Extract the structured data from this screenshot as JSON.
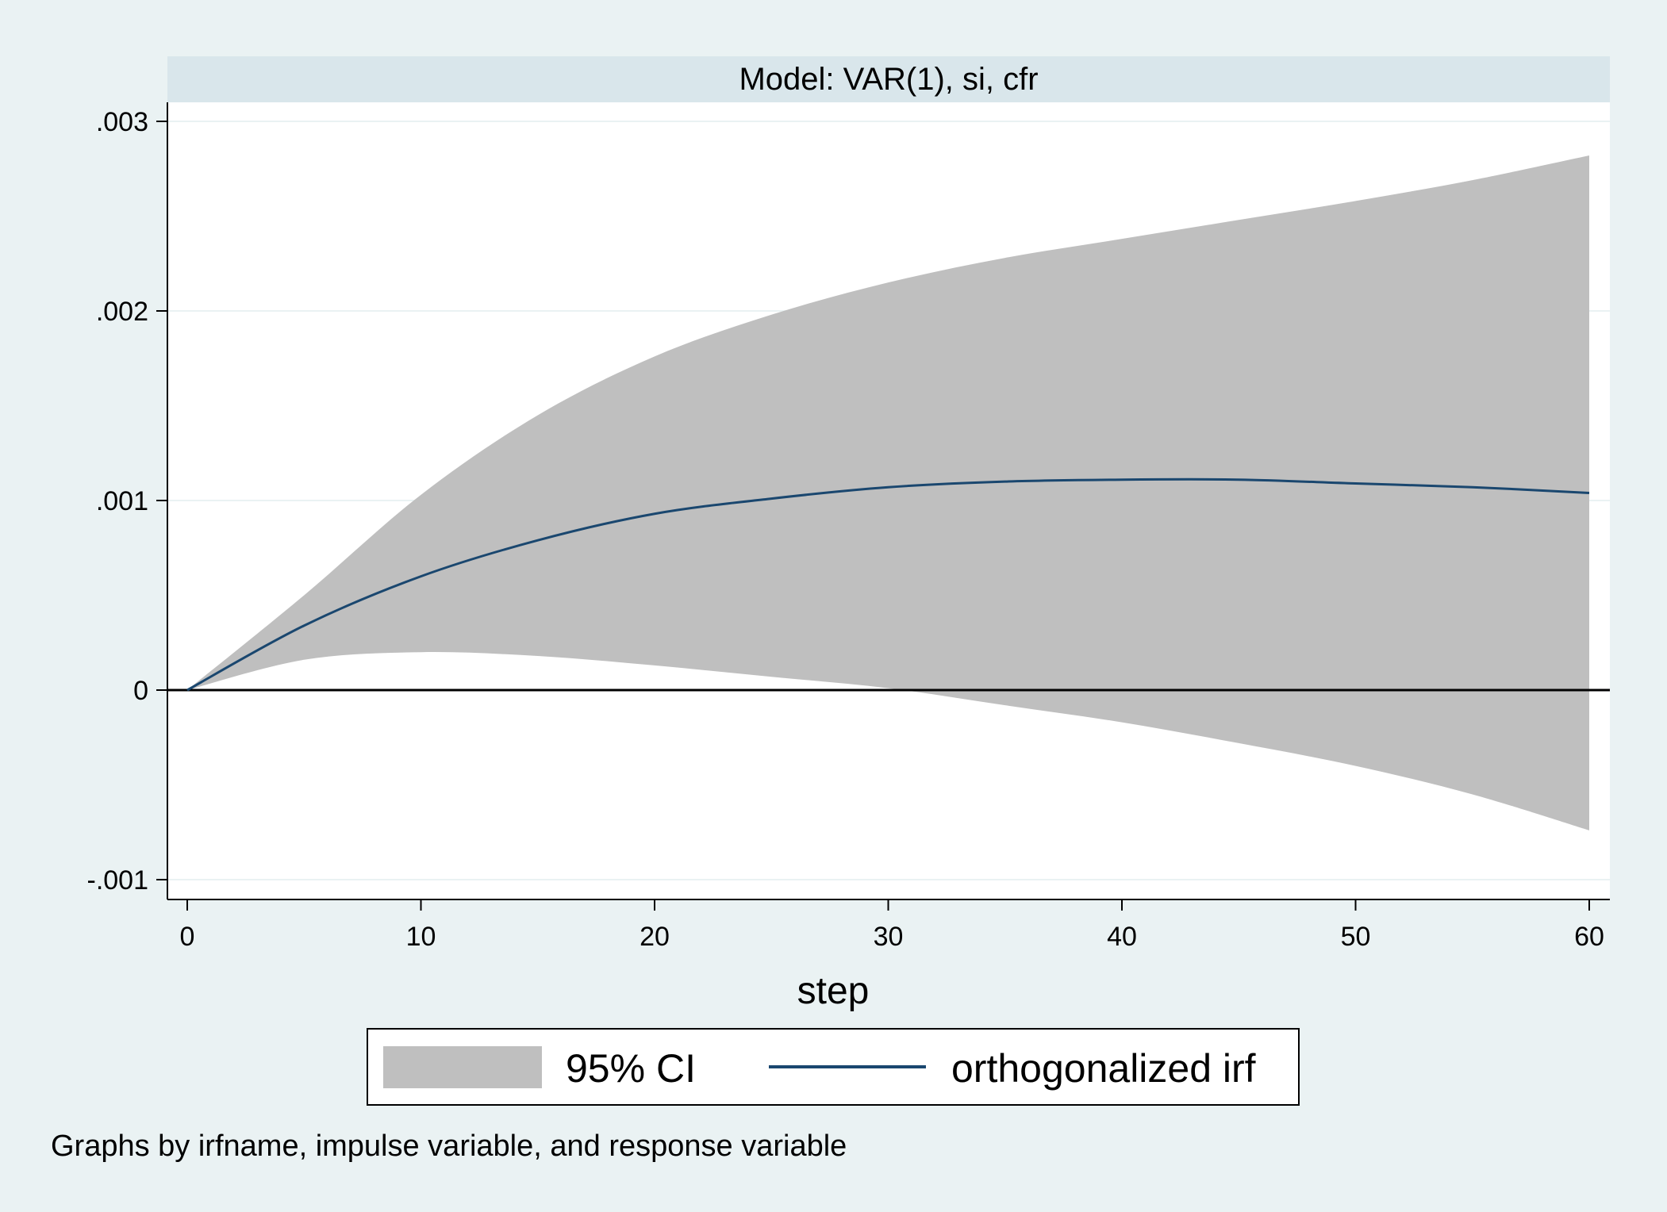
{
  "panel": {
    "title": "Model: VAR(1), si, cfr"
  },
  "note": "Graphs by irfname, impulse variable, and response variable",
  "legend": {
    "items": [
      {
        "label": "95% CI",
        "kind": "area"
      },
      {
        "label": "orthogonalized irf",
        "kind": "line"
      }
    ]
  },
  "colors": {
    "background": "#eaf2f3",
    "plot_bg": "#ffffff",
    "title_band": "#d9e6eb",
    "ci_fill": "#bfbfbf",
    "irf_line": "#1a476f",
    "grid": "#eaf2f3",
    "zero_line": "#000000"
  },
  "chart_data": {
    "type": "area",
    "title": "Model: VAR(1), si, cfr",
    "xlabel": "step",
    "ylabel": "",
    "xlim": [
      0,
      60
    ],
    "ylim": [
      -0.00112,
      0.00312
    ],
    "x_ticks": [
      0,
      10,
      20,
      30,
      40,
      50,
      60
    ],
    "x_tick_labels": [
      "0",
      "10",
      "20",
      "30",
      "40",
      "50",
      "60"
    ],
    "y_ticks": [
      -0.001,
      0,
      0.001,
      0.002,
      0.003
    ],
    "y_tick_labels": [
      "-.001",
      "0",
      ".001",
      ".002",
      ".003"
    ],
    "grid": true,
    "legend_position": "bottom",
    "x": [
      0,
      5,
      10,
      15,
      20,
      25,
      30,
      35,
      40,
      45,
      50,
      55,
      60
    ],
    "series": [
      {
        "name": "95% CI",
        "kind": "band",
        "lower": [
          0,
          0.00016,
          0.0002,
          0.00018,
          0.00013,
          7e-05,
          1e-05,
          -8e-05,
          -0.00017,
          -0.00028,
          -0.0004,
          -0.00055,
          -0.00074
        ],
        "upper": [
          0,
          0.0005,
          0.00103,
          0.00145,
          0.00176,
          0.00198,
          0.00215,
          0.00228,
          0.00238,
          0.00248,
          0.00258,
          0.00269,
          0.00282
        ]
      },
      {
        "name": "orthogonalized irf",
        "kind": "line",
        "values": [
          0,
          0.00034,
          0.0006,
          0.00079,
          0.00093,
          0.00101,
          0.00107,
          0.0011,
          0.00111,
          0.00111,
          0.00109,
          0.00107,
          0.00104
        ]
      }
    ]
  }
}
